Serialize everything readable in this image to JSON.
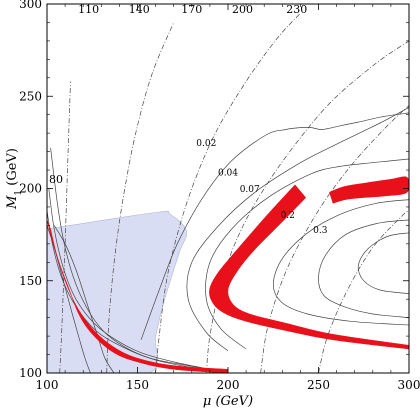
{
  "chart_data": {
    "type": "line",
    "title": "",
    "xlabel": "μ (GeV)",
    "ylabel_main": "M",
    "ylabel_sub": "1",
    "ylabel_unit": " (GeV)",
    "xlim": [
      100,
      300
    ],
    "ylim": [
      100,
      300
    ],
    "xticks": [
      "100",
      "150",
      "200",
      "250",
      "300"
    ],
    "yticks": [
      "100",
      "150",
      "200",
      "250",
      "300"
    ],
    "xtick_values": [
      100,
      150,
      200,
      250,
      300
    ],
    "ytick_values": [
      100,
      150,
      200,
      250,
      300
    ],
    "grid": false,
    "colors": {
      "band": "#e8101a",
      "excluded": "#d8dcf4",
      "contour": "#444444",
      "dashed": "#444444",
      "frame": "#000000"
    },
    "dashed_labels": [
      {
        "text": "80",
        "x": 105,
        "y": 203
      },
      {
        "text": "110",
        "x": 123,
        "y": 295
      },
      {
        "text": "140",
        "x": 151,
        "y": 295
      },
      {
        "text": "170",
        "x": 180,
        "y": 295
      },
      {
        "text": "200",
        "x": 208,
        "y": 295
      },
      {
        "text": "230",
        "x": 238,
        "y": 295
      }
    ],
    "contour_labels": [
      {
        "text": "0.02",
        "x": 188,
        "y": 223
      },
      {
        "text": "0.04",
        "x": 200,
        "y": 207
      },
      {
        "text": "0.07",
        "x": 212,
        "y": 198
      },
      {
        "text": "0.2",
        "x": 233,
        "y": 184
      },
      {
        "text": "0.3",
        "x": 251,
        "y": 176
      }
    ],
    "excluded_region": [
      [
        100,
        178
      ],
      [
        160,
        187
      ],
      [
        168,
        186
      ],
      [
        177,
        177
      ],
      [
        173,
        165
      ],
      [
        165,
        140
      ],
      [
        160,
        120
      ],
      [
        156,
        100
      ],
      [
        100,
        100
      ]
    ],
    "red_band_low": {
      "outer": [
        [
          100,
          183
        ],
        [
          104,
          168
        ],
        [
          110,
          150
        ],
        [
          117,
          135
        ],
        [
          126,
          123
        ],
        [
          137,
          114
        ],
        [
          150,
          108
        ],
        [
          170,
          104
        ],
        [
          200,
          102
        ]
      ],
      "inner": [
        [
          200,
          100
        ],
        [
          170,
          102
        ],
        [
          150,
          106
        ],
        [
          137,
          111
        ],
        [
          126,
          120
        ],
        [
          118,
          131
        ],
        [
          112,
          146
        ],
        [
          106,
          162
        ],
        [
          102,
          178
        ]
      ]
    },
    "red_band_v": {
      "outer": [
        [
          237,
          202
        ],
        [
          222,
          186
        ],
        [
          206,
          168
        ],
        [
          195,
          155
        ],
        [
          190,
          146
        ],
        [
          191,
          139
        ],
        [
          197,
          133
        ],
        [
          210,
          128
        ],
        [
          232,
          123
        ],
        [
          258,
          118
        ],
        [
          300,
          113
        ]
      ],
      "inner": [
        [
          300,
          115
        ],
        [
          258,
          121
        ],
        [
          232,
          127
        ],
        [
          212,
          132
        ],
        [
          203,
          137
        ],
        [
          200,
          145
        ],
        [
          205,
          155
        ],
        [
          214,
          166
        ],
        [
          228,
          180
        ],
        [
          243,
          195
        ]
      ]
    },
    "red_band_right": [
      [
        256,
        198
      ],
      [
        264,
        201
      ],
      [
        276,
        203
      ],
      [
        290,
        205
      ],
      [
        299,
        206
      ],
      [
        299,
        198
      ],
      [
        287,
        196
      ],
      [
        274,
        195
      ],
      [
        265,
        194
      ],
      [
        258,
        192
      ]
    ],
    "solid_contours": [
      [
        [
          102,
          222
        ],
        [
          106,
          190
        ],
        [
          110,
          168
        ],
        [
          116,
          148
        ],
        [
          124,
          132
        ],
        [
          133,
          121
        ],
        [
          145,
          113
        ],
        [
          160,
          107
        ],
        [
          180,
          103
        ],
        [
          195,
          101
        ]
      ],
      [
        [
          101,
          200
        ],
        [
          104,
          178
        ],
        [
          109,
          157
        ],
        [
          116,
          140
        ],
        [
          126,
          127
        ],
        [
          138,
          118
        ],
        [
          152,
          111
        ],
        [
          170,
          106
        ],
        [
          190,
          102
        ]
      ],
      [
        [
          100,
          188
        ],
        [
          103,
          170
        ],
        [
          108,
          152
        ],
        [
          116,
          136
        ],
        [
          127,
          123
        ],
        [
          140,
          115
        ],
        [
          157,
          108
        ],
        [
          178,
          104
        ],
        [
          197,
          101
        ]
      ],
      [
        [
          124,
          100
        ],
        [
          121,
          108
        ],
        [
          118,
          118
        ],
        [
          114,
          132
        ],
        [
          109,
          150
        ],
        [
          104,
          168
        ],
        [
          100,
          180
        ]
      ],
      [
        [
          137,
          100
        ],
        [
          132,
          108
        ],
        [
          128,
          120
        ],
        [
          122,
          138
        ],
        [
          116,
          156
        ],
        [
          110,
          170
        ],
        [
          104,
          180
        ]
      ],
      [
        [
          152,
          118
        ],
        [
          162,
          145
        ],
        [
          172,
          170
        ],
        [
          186,
          195
        ],
        [
          202,
          215
        ],
        [
          221,
          229
        ],
        [
          232,
          232
        ],
        [
          240,
          233
        ],
        [
          246,
          233
        ],
        [
          252,
          232
        ],
        [
          262,
          234
        ],
        [
          272,
          236
        ],
        [
          286,
          239
        ],
        [
          300,
          241
        ]
      ],
      [
        [
          200,
          112
        ],
        [
          188,
          122
        ],
        [
          178,
          140
        ],
        [
          180,
          160
        ],
        [
          195,
          180
        ],
        [
          215,
          198
        ],
        [
          240,
          214
        ],
        [
          260,
          224
        ],
        [
          285,
          236
        ],
        [
          300,
          244
        ]
      ],
      [
        [
          210,
          113
        ],
        [
          196,
          124
        ],
        [
          188,
          140
        ],
        [
          190,
          160
        ],
        [
          202,
          178
        ],
        [
          222,
          195
        ],
        [
          246,
          208
        ],
        [
          262,
          212
        ],
        [
          280,
          214
        ],
        [
          300,
          216
        ]
      ],
      [
        [
          300,
          126
        ],
        [
          268,
          128
        ],
        [
          244,
          132
        ],
        [
          230,
          138
        ],
        [
          225,
          148
        ],
        [
          230,
          162
        ],
        [
          244,
          176
        ],
        [
          262,
          186
        ],
        [
          282,
          192
        ],
        [
          300,
          194
        ]
      ],
      [
        [
          300,
          130
        ],
        [
          280,
          132
        ],
        [
          264,
          136
        ],
        [
          253,
          142
        ],
        [
          250,
          152
        ],
        [
          254,
          164
        ],
        [
          265,
          175
        ],
        [
          282,
          181
        ],
        [
          300,
          183
        ]
      ],
      [
        [
          300,
          143
        ],
        [
          284,
          145
        ],
        [
          275,
          150
        ],
        [
          272,
          158
        ],
        [
          277,
          167
        ],
        [
          288,
          174
        ],
        [
          300,
          176
        ]
      ]
    ],
    "dashed_contours": [
      [
        [
          107,
          100
        ],
        [
          108,
          120
        ],
        [
          109,
          145
        ],
        [
          110,
          170
        ],
        [
          111,
          200
        ],
        [
          112,
          230
        ],
        [
          113,
          258
        ]
      ],
      [
        [
          133,
          100
        ],
        [
          134,
          125
        ],
        [
          136,
          150
        ],
        [
          139,
          175
        ],
        [
          143,
          200
        ],
        [
          149,
          230
        ],
        [
          158,
          262
        ],
        [
          170,
          290
        ]
      ],
      [
        [
          160,
          100
        ],
        [
          162,
          120
        ],
        [
          166,
          150
        ],
        [
          172,
          175
        ],
        [
          180,
          200
        ],
        [
          192,
          228
        ],
        [
          208,
          255
        ],
        [
          226,
          280
        ],
        [
          240,
          295
        ]
      ],
      [
        [
          188,
          100
        ],
        [
          190,
          120
        ],
        [
          196,
          148
        ],
        [
          206,
          175
        ],
        [
          220,
          200
        ],
        [
          238,
          225
        ],
        [
          258,
          248
        ],
        [
          282,
          268
        ],
        [
          300,
          280
        ]
      ],
      [
        [
          218,
          100
        ],
        [
          222,
          125
        ],
        [
          232,
          155
        ],
        [
          248,
          185
        ],
        [
          266,
          210
        ],
        [
          286,
          232
        ],
        [
          300,
          245
        ]
      ],
      [
        [
          250,
          100
        ],
        [
          255,
          120
        ],
        [
          266,
          145
        ],
        [
          280,
          168
        ],
        [
          296,
          185
        ],
        [
          300,
          188
        ]
      ]
    ]
  }
}
